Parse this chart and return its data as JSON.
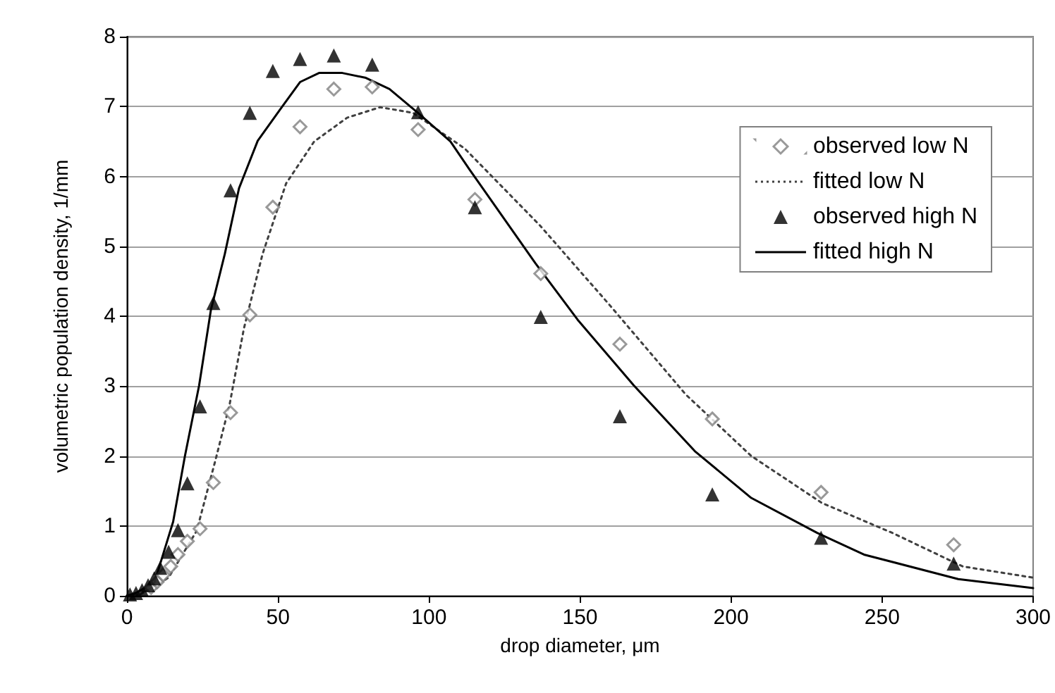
{
  "chart_data": {
    "type": "scatter",
    "xlabel": "drop diameter, μm",
    "ylabel": "volumetric population density, 1/mm",
    "xlim": [
      0,
      300
    ],
    "xticks": [
      0,
      50,
      100,
      150,
      200,
      250,
      300
    ],
    "ylim": [
      0,
      8
    ],
    "yticks": [
      0,
      1,
      2,
      3,
      4,
      5,
      6,
      7,
      8
    ],
    "grid": "y",
    "legend": "top right",
    "series": [
      {
        "name": "observed low N",
        "marker": "diamond",
        "color": "#808080",
        "x": [
          8,
          10,
          12,
          14.5,
          16.9,
          20,
          24.2,
          28.6,
          34.3,
          40.7,
          48.3,
          57.3,
          68.5,
          81.2,
          96.4,
          115.2,
          137,
          163.2,
          193.8,
          229.8,
          273.7
        ],
        "values": [
          0.12,
          0.2,
          0.3,
          0.42,
          0.59,
          0.78,
          0.96,
          1.62,
          2.62,
          4.02,
          5.56,
          6.71,
          7.25,
          7.28,
          6.67,
          5.67,
          4.61,
          3.6,
          2.53,
          1.48,
          0.73
        ]
      },
      {
        "name": "fitted low N",
        "type": "line",
        "marker": "none",
        "line_style": "dotted",
        "color": "#404040",
        "x": [
          0,
          4.4,
          13.8,
          23.1,
          29.3,
          34,
          38.7,
          44.9,
          52.7,
          62,
          72.9,
          83.8,
          94.7,
          111.8,
          136.7,
          160,
          185,
          206.7,
          230,
          253.4,
          276.7,
          300
        ],
        "values": [
          0,
          0.02,
          0.26,
          0.93,
          1.94,
          2.74,
          3.82,
          4.89,
          5.9,
          6.5,
          6.84,
          6.99,
          6.91,
          6.4,
          5.3,
          4.15,
          2.88,
          2.0,
          1.33,
          0.9,
          0.42,
          0.26
        ]
      },
      {
        "name": "observed high N",
        "marker": "triangle",
        "color": "#000000",
        "x": [
          1,
          3,
          5,
          7,
          9,
          11,
          13.8,
          16.9,
          20,
          24.2,
          28.6,
          34.3,
          40.7,
          48.3,
          57.3,
          68.5,
          81.2,
          96.4,
          115.2,
          137,
          163.2,
          193.8,
          229.8,
          273.7
        ],
        "values": [
          0.02,
          0.04,
          0.08,
          0.15,
          0.25,
          0.4,
          0.63,
          0.94,
          1.61,
          2.71,
          4.19,
          5.8,
          6.91,
          7.51,
          7.68,
          7.73,
          7.6,
          6.92,
          5.56,
          3.99,
          2.57,
          1.45,
          0.83,
          0.46
        ]
      },
      {
        "name": "fitted high N",
        "type": "line",
        "marker": "none",
        "line_style": "solid",
        "color": "#000000",
        "x": [
          0,
          2.9,
          9.1,
          15.3,
          19.2,
          23.9,
          27.8,
          32.4,
          37.1,
          43.3,
          51.1,
          57.3,
          63.6,
          71.3,
          79.1,
          86.9,
          96.3,
          107.1,
          113.4,
          135.2,
          149.2,
          167.8,
          188,
          206.7,
          228.5,
          244,
          275.2,
          300
        ],
        "values": [
          0,
          0.04,
          0.19,
          1.06,
          2.0,
          3.01,
          4.09,
          4.89,
          5.83,
          6.51,
          6.98,
          7.35,
          7.48,
          7.48,
          7.41,
          7.25,
          6.91,
          6.5,
          6.1,
          4.76,
          3.95,
          3.01,
          2.07,
          1.4,
          0.9,
          0.59,
          0.24,
          0.11
        ]
      }
    ]
  }
}
